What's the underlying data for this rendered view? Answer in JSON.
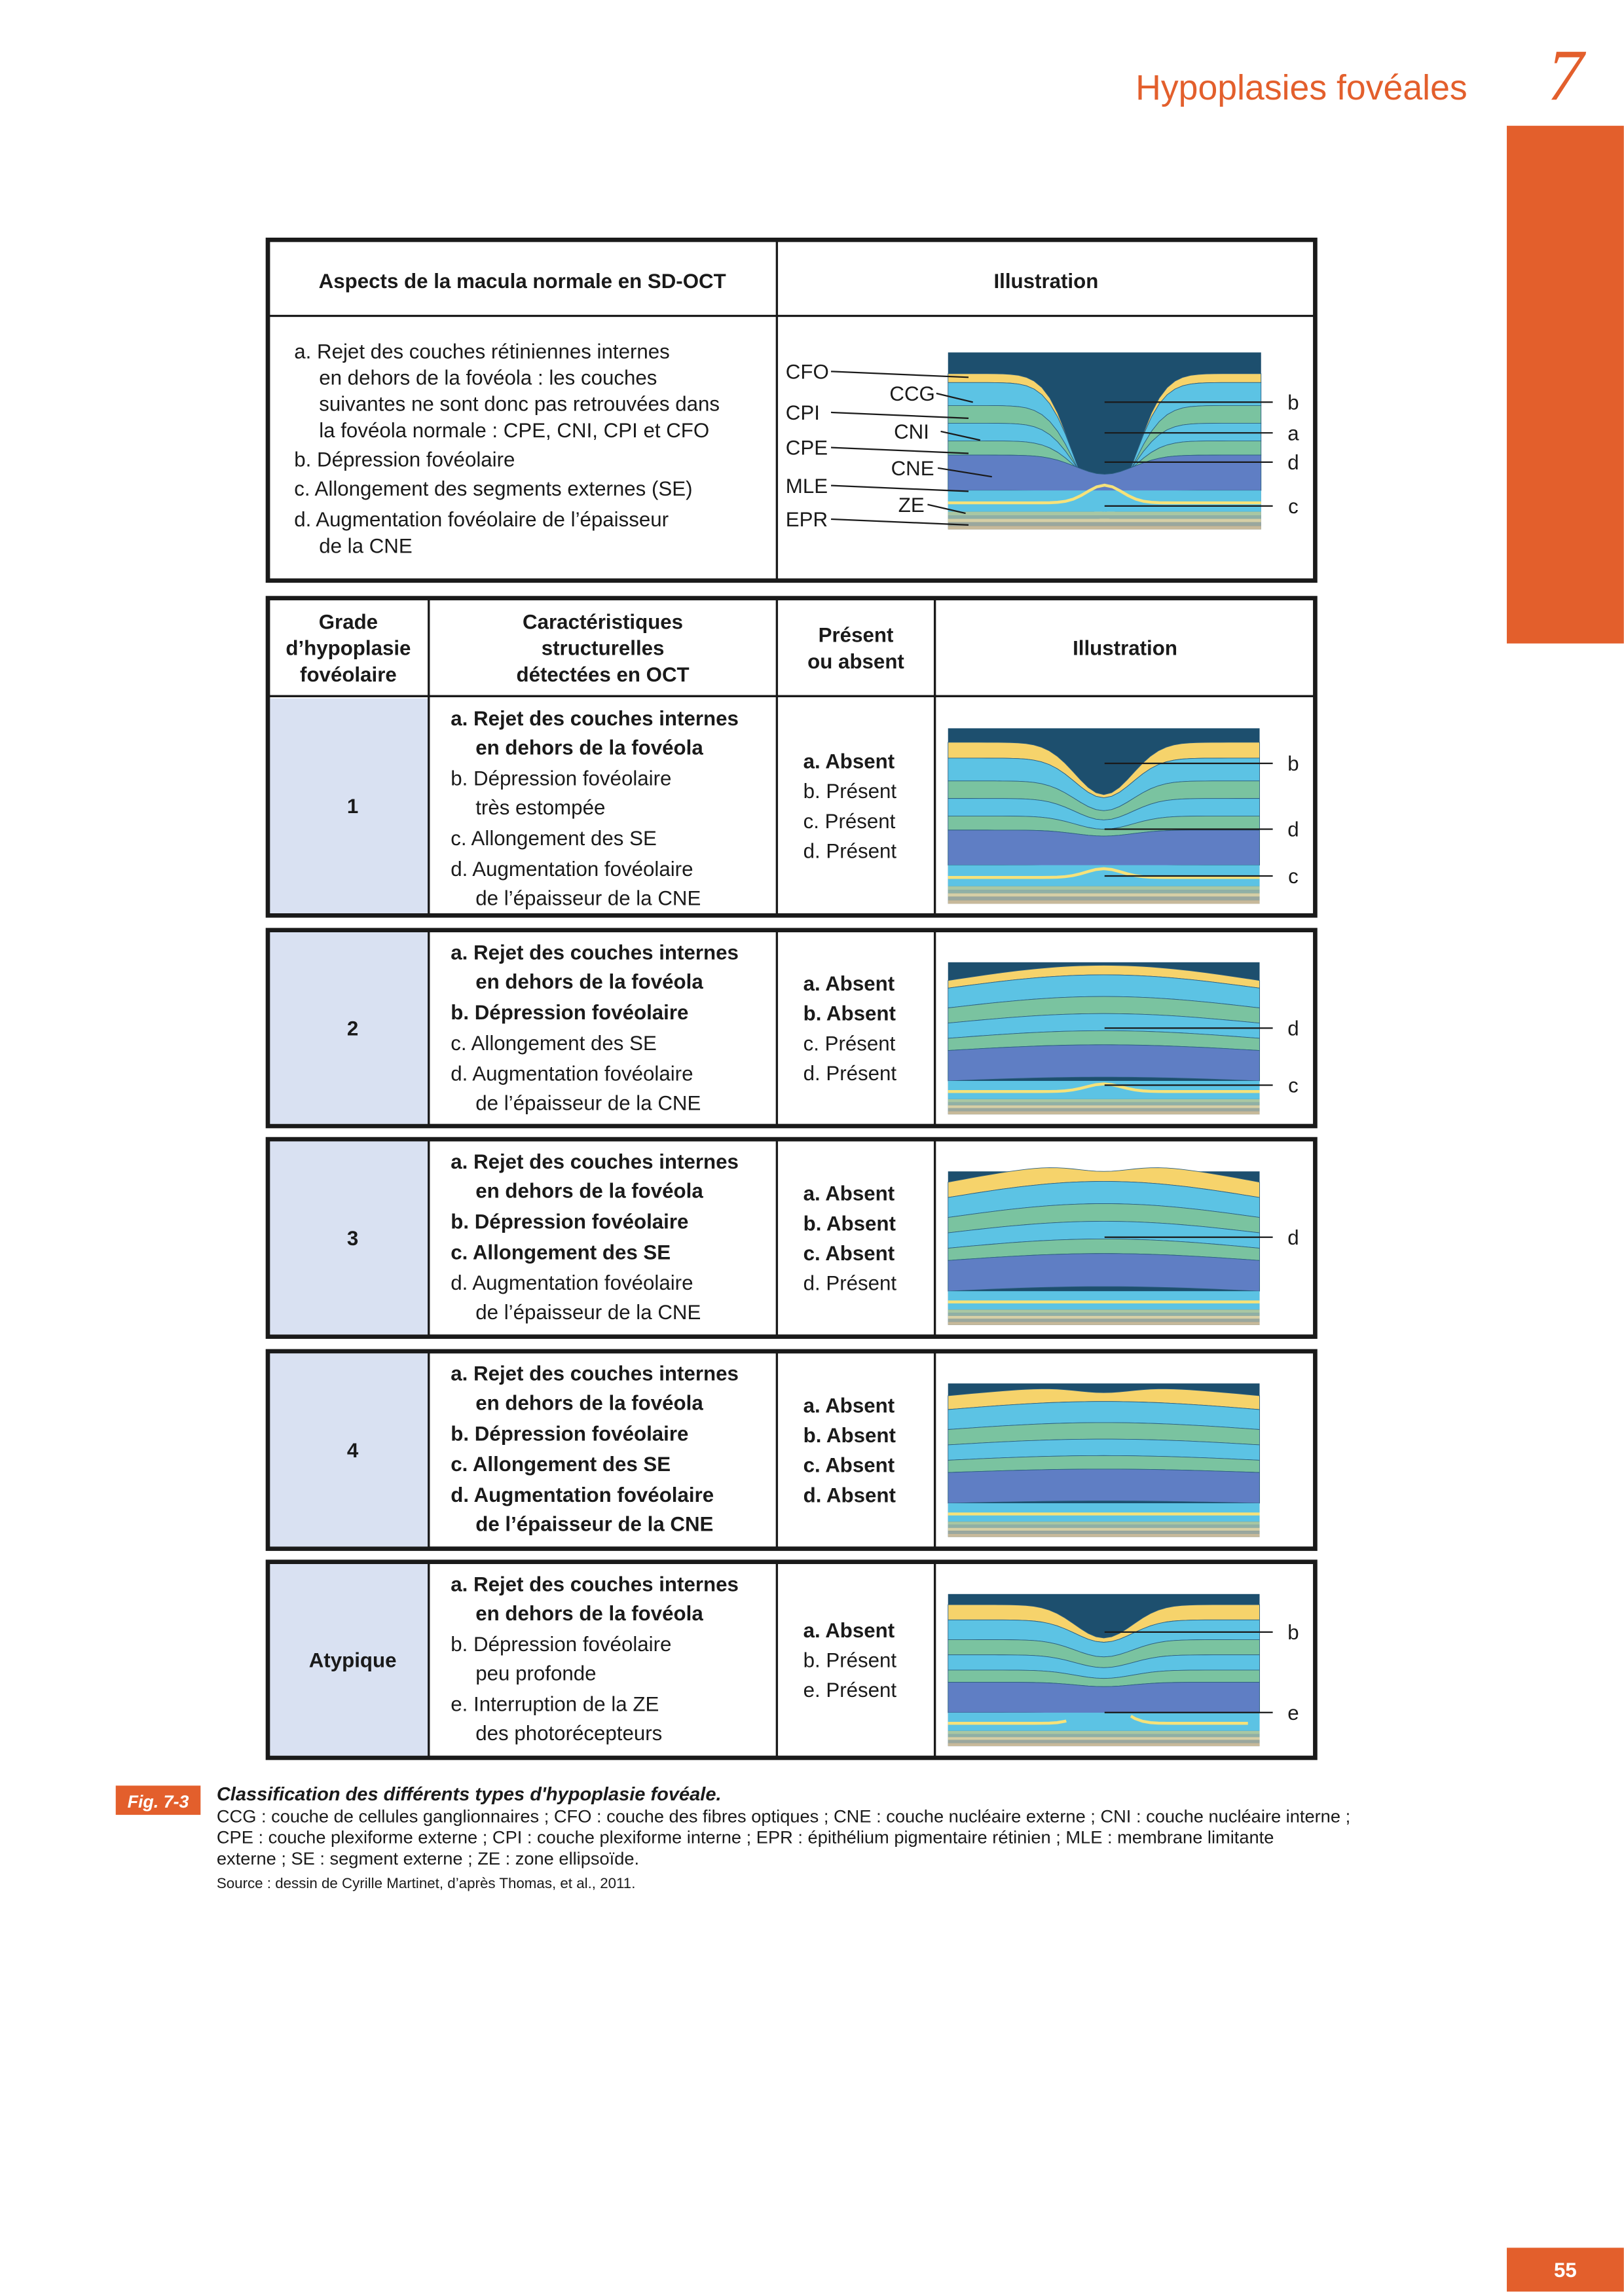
{
  "header": {
    "title": "Hypoplasies fovéales",
    "chapter": "7"
  },
  "table1": {
    "headers": [
      "Aspects de la macula normale en SD-OCT",
      "Illustration"
    ],
    "items": [
      {
        "lines": [
          "a. Rejet des couches rétiniennes internes",
          "en dehors de la fovéola : les couches",
          "suivantes ne sont donc pas retrouvées dans",
          "la fovéola normale : CPE, CNI, CPI et CFO"
        ]
      },
      {
        "lines": [
          "b. Dépression fovéolaire"
        ]
      },
      {
        "lines": [
          "c. Allongement des segments externes (SE)"
        ]
      },
      {
        "lines": [
          "d. Augmentation fovéolaire de l’épaisseur",
          "de la CNE"
        ]
      }
    ],
    "outer_labels": [
      "CFO",
      "CPI",
      "CPE",
      "MLE",
      "EPR"
    ],
    "inner_labels": [
      "CCG",
      "CNI",
      "CNE",
      "ZE"
    ],
    "right_labels": [
      "b",
      "a",
      "d",
      "c"
    ]
  },
  "table2": {
    "headers": [
      [
        "Grade",
        "d’hypoplasie",
        "fovéolaire"
      ],
      [
        "Caractéristiques",
        "structurelles",
        "détectées en OCT"
      ],
      [
        "Présent",
        "ou absent"
      ],
      [
        "Illustration"
      ]
    ],
    "rows": [
      {
        "grade": "1",
        "features": [
          {
            "lines": [
              "a. Rejet des couches internes",
              "en dehors de la fovéola"
            ],
            "bold": true
          },
          {
            "lines": [
              "b. Dépression fovéolaire",
              "très estompée"
            ],
            "bold": false
          },
          {
            "lines": [
              "c. Allongement des SE"
            ],
            "bold": false
          },
          {
            "lines": [
              "d. Augmentation fovéolaire",
              "de l’épaisseur de la CNE"
            ],
            "bold": false
          }
        ],
        "presence": [
          {
            "text": "a. Absent",
            "bold": true
          },
          {
            "text": "b. Présent",
            "bold": false
          },
          {
            "text": "c. Présent",
            "bold": false
          },
          {
            "text": "d. Présent",
            "bold": false
          }
        ],
        "labels": [
          "b",
          "d",
          "c"
        ]
      },
      {
        "grade": "2",
        "features": [
          {
            "lines": [
              "a. Rejet des couches internes",
              "en dehors de la fovéola"
            ],
            "bold": true
          },
          {
            "lines": [
              "b. Dépression fovéolaire"
            ],
            "bold": true
          },
          {
            "lines": [
              "c. Allongement des SE"
            ],
            "bold": false
          },
          {
            "lines": [
              "d. Augmentation fovéolaire",
              "de l’épaisseur de la CNE"
            ],
            "bold": false
          }
        ],
        "presence": [
          {
            "text": "a. Absent",
            "bold": true
          },
          {
            "text": "b. Absent",
            "bold": true
          },
          {
            "text": "c. Présent",
            "bold": false
          },
          {
            "text": "d. Présent",
            "bold": false
          }
        ],
        "labels": [
          "d",
          "c"
        ]
      },
      {
        "grade": "3",
        "features": [
          {
            "lines": [
              "a. Rejet des couches internes",
              "en dehors de la fovéola"
            ],
            "bold": true
          },
          {
            "lines": [
              "b. Dépression fovéolaire"
            ],
            "bold": true
          },
          {
            "lines": [
              "c. Allongement des SE"
            ],
            "bold": true
          },
          {
            "lines": [
              "d. Augmentation fovéolaire",
              "de l’épaisseur de la CNE"
            ],
            "bold": false
          }
        ],
        "presence": [
          {
            "text": "a. Absent",
            "bold": true
          },
          {
            "text": "b. Absent",
            "bold": true
          },
          {
            "text": "c. Absent",
            "bold": true
          },
          {
            "text": "d. Présent",
            "bold": false
          }
        ],
        "labels": [
          "d"
        ]
      },
      {
        "grade": "4",
        "features": [
          {
            "lines": [
              "a. Rejet des couches internes",
              "en dehors de la fovéola"
            ],
            "bold": true
          },
          {
            "lines": [
              "b. Dépression fovéolaire"
            ],
            "bold": true
          },
          {
            "lines": [
              "c. Allongement des SE"
            ],
            "bold": true
          },
          {
            "lines": [
              "d. Augmentation fovéolaire",
              "de l’épaisseur de la CNE"
            ],
            "bold": true
          }
        ],
        "presence": [
          {
            "text": "a. Absent",
            "bold": true
          },
          {
            "text": "b. Absent",
            "bold": true
          },
          {
            "text": "c. Absent",
            "bold": true
          },
          {
            "text": "d. Absent",
            "bold": true
          }
        ],
        "labels": []
      },
      {
        "grade": "Atypique",
        "features": [
          {
            "lines": [
              "a. Rejet des couches internes",
              "en dehors de la fovéola"
            ],
            "bold": true
          },
          {
            "lines": [
              "b. Dépression fovéolaire",
              "peu profonde"
            ],
            "bold": false
          },
          {
            "lines": [
              "e. Interruption de la ZE",
              "des photorécepteurs"
            ],
            "bold": false
          }
        ],
        "presence": [
          {
            "text": "a. Absent",
            "bold": true
          },
          {
            "text": "b. Présent",
            "bold": false
          },
          {
            "text": "e. Présent",
            "bold": false
          }
        ],
        "labels": [
          "b",
          "e"
        ]
      }
    ]
  },
  "caption": {
    "label": "Fig. 7-3",
    "title": "Classification des différents types d'hypoplasie fovéale.",
    "lines": [
      "CCG : couche de cellules ganglionnaires ; CFO : couche des fibres optiques ; CNE : couche nucléaire externe ; CNI : couche nucléaire interne ;",
      "CPE : couche plexiforme externe ; CPI : couche plexiforme interne ; EPR : épithélium pigmentaire rétinien ; MLE : membrane limitante",
      "externe ; SE : segment externe ; ZE : zone ellipsoïde."
    ],
    "source": "Source : dessin de Cyrille Martinet, d’après Thomas, et al., 2011."
  },
  "page_number": "55"
}
